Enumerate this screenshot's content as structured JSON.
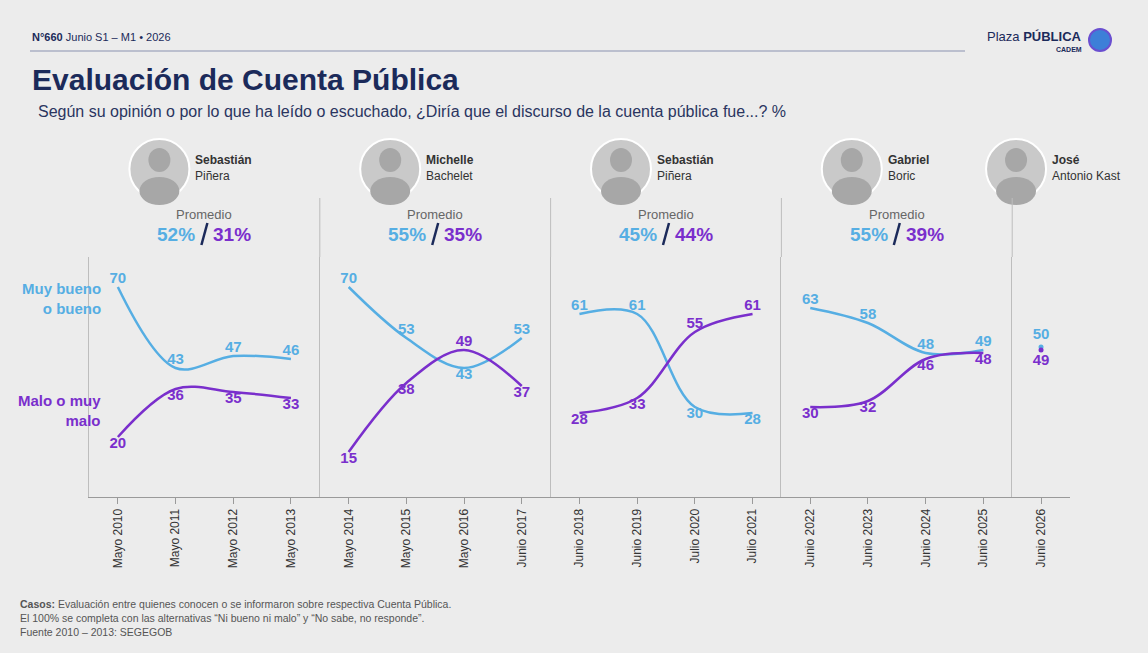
{
  "header": "N°660 Junio S1 – M1 • 2026",
  "brand": "Plaza PÚBLICA",
  "brand_sub": "CADEM",
  "title": "Evaluación de Cuenta Pública",
  "subtitle": "Según su opinión o por lo que ha leído o escuchado, ¿Diría que el discurso de la cuenta pública fue...? %",
  "average_label": "Promedio",
  "notes": [
    {
      "label": "Casos:",
      "text": "Evaluación entre quienes conocen o se informaron sobre respectiva Cuenta Pública."
    },
    {
      "text": "El 100% se completa con las alternativas “Ni bueno ni malo” y “No sabe, no responde”."
    },
    {
      "text": "Fuente 2010 – 2013: SEGEGOB"
    }
  ],
  "chart_data": [
    {
      "type": "line",
      "title": "Sebastián Piñera",
      "average_labels": [
        "52%",
        "31%"
      ],
      "categories": [
        "Mayo 2010",
        "Mayo 2011",
        "Mayo 2012",
        "Mayo 2013"
      ],
      "series": [
        {
          "name": "Muy bueno o bueno",
          "color": "#56aee3",
          "values": [
            70,
            43,
            47,
            46
          ]
        },
        {
          "name": "Malo o muy malo",
          "color": "#7a2fcc",
          "values": [
            20,
            36,
            35,
            33
          ]
        }
      ],
      "ylim": [
        0,
        80
      ],
      "yticks": [],
      "grid": false,
      "data_labels": true,
      "tick_labels": "x",
      "line_style": "solid"
    },
    {
      "type": "line",
      "title": "Michelle Bachelet",
      "average_labels": [
        "55%",
        "35%"
      ],
      "categories": [
        "Mayo 2014",
        "Mayo 2015",
        "Mayo 2016",
        "Junio 2017"
      ],
      "series": [
        {
          "name": "Muy bueno o bueno",
          "color": "#56aee3",
          "values": [
            70,
            53,
            43,
            53
          ]
        },
        {
          "name": "Malo o muy malo",
          "color": "#7a2fcc",
          "values": [
            15,
            38,
            49,
            37
          ]
        }
      ],
      "ylim": [
        0,
        80
      ],
      "yticks": [],
      "grid": false,
      "data_labels": true,
      "tick_labels": "x",
      "line_style": "solid"
    },
    {
      "type": "line",
      "title": "Sebastián Piñera",
      "average_labels": [
        "45%",
        "44%"
      ],
      "categories": [
        "Junio 2018",
        "Junio 2019",
        "Julio 2020",
        "Julio 2021"
      ],
      "series": [
        {
          "name": "Muy bueno o bueno",
          "color": "#56aee3",
          "values": [
            61,
            61,
            30,
            28
          ]
        },
        {
          "name": "Malo o muy malo",
          "color": "#7a2fcc",
          "values": [
            28,
            33,
            55,
            61
          ]
        }
      ],
      "ylim": [
        0,
        80
      ],
      "yticks": [],
      "grid": false,
      "data_labels": true,
      "tick_labels": "x",
      "line_style": "solid"
    },
    {
      "type": "line",
      "title": "Gabriel Boric",
      "average_labels": [
        "55%",
        "39%"
      ],
      "categories": [
        "Junio 2022",
        "Junio 2023",
        "Junio 2024",
        "Junio 2025"
      ],
      "series": [
        {
          "name": "Muy bueno o bueno",
          "color": "#56aee3",
          "values": [
            63,
            58,
            48,
            49
          ]
        },
        {
          "name": "Malo o muy malo",
          "color": "#7a2fcc",
          "values": [
            30,
            32,
            46,
            48
          ]
        }
      ],
      "ylim": [
        0,
        80
      ],
      "yticks": [],
      "grid": false,
      "data_labels": true,
      "tick_labels": "x",
      "line_style": "solid"
    },
    {
      "type": "line",
      "title": "José Antonio Kast",
      "categories": [
        "Junio 2026"
      ],
      "series": [
        {
          "name": "Muy bueno o bueno",
          "color": "#56aee3",
          "values": [
            50
          ]
        },
        {
          "name": "Malo o muy malo",
          "color": "#7a2fcc",
          "values": [
            49
          ]
        }
      ],
      "ylim": [
        0,
        80
      ],
      "yticks": [],
      "grid": false,
      "data_labels": true,
      "tick_labels": "x",
      "line_style": "solid",
      "marker": "circle"
    }
  ]
}
